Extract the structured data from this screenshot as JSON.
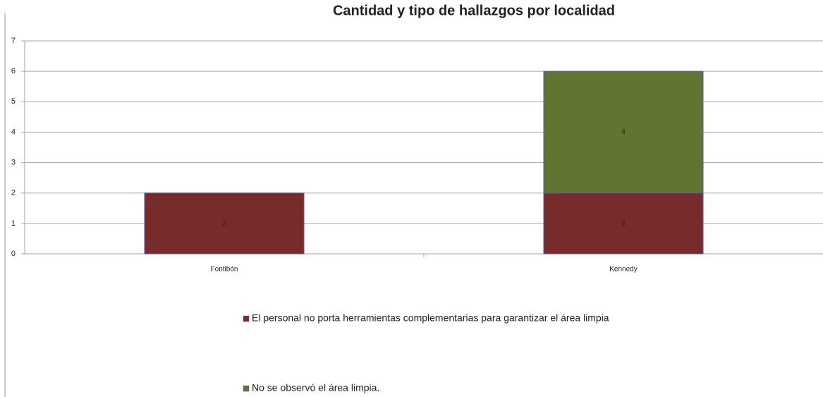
{
  "chart_data": {
    "type": "bar",
    "stacked": true,
    "title": "Cantidad y tipo de hallazgos por localidad",
    "categories": [
      "Fontibón",
      "Kennedy"
    ],
    "series": [
      {
        "name": "El personal no porta herramientas complementarias para garantizar el área limpia",
        "color": "#772b2b",
        "values": [
          2,
          2
        ]
      },
      {
        "name": "No se observó el área limpia.",
        "color": "#617532",
        "values": [
          null,
          4
        ]
      }
    ],
    "ylim": [
      0,
      7
    ],
    "yticks": [
      0,
      1,
      2,
      3,
      4,
      5,
      6,
      7
    ],
    "grid": true
  }
}
